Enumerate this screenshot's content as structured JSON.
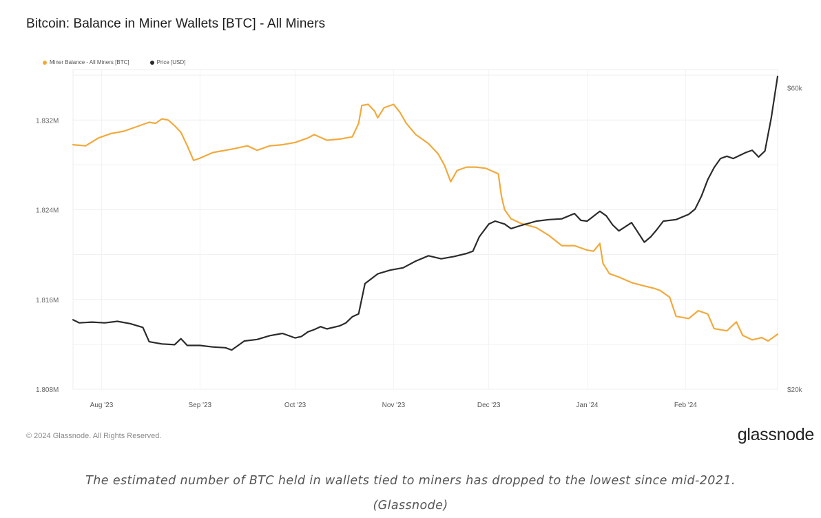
{
  "chart_data": {
    "type": "line",
    "title": "Bitcoin: Balance in Miner Wallets [BTC] - All Miners",
    "legend_position": "top-left",
    "x_tick_labels": [
      "Aug '23",
      "Sep '23",
      "Oct '23",
      "Nov '23",
      "Dec '23",
      "Jan '24",
      "Feb '24"
    ],
    "x_range_days": [
      0,
      222
    ],
    "x_tick_days": [
      9,
      40,
      70,
      101,
      131,
      162,
      193
    ],
    "left_axis": {
      "ylim": [
        1.808,
        1.8365
      ],
      "tick_values": [
        1.808,
        1.816,
        1.824,
        1.832
      ],
      "tick_labels": [
        "1.808M",
        "1.816M",
        "1.824M",
        "1.832M"
      ]
    },
    "right_axis": {
      "ylim": [
        20000,
        62400
      ],
      "tick_values": [
        20000,
        60000
      ],
      "tick_labels": [
        "$20k",
        "$60k"
      ]
    },
    "grid": true,
    "series": [
      {
        "name": "Miner Balance - All Miners [BTC]",
        "axis": "left",
        "color": "#f2a93b",
        "points": [
          [
            0,
            1.8298
          ],
          [
            4,
            1.8297
          ],
          [
            8,
            1.8304
          ],
          [
            12,
            1.8308
          ],
          [
            16,
            1.831
          ],
          [
            20,
            1.8314
          ],
          [
            24,
            1.8318
          ],
          [
            26,
            1.8317
          ],
          [
            28,
            1.8321
          ],
          [
            30,
            1.832
          ],
          [
            32,
            1.8315
          ],
          [
            34,
            1.8309
          ],
          [
            36,
            1.8297
          ],
          [
            38,
            1.8284
          ],
          [
            40,
            1.8286
          ],
          [
            44,
            1.8291
          ],
          [
            50,
            1.8294
          ],
          [
            55,
            1.8297
          ],
          [
            58,
            1.8293
          ],
          [
            62,
            1.8297
          ],
          [
            66,
            1.8298
          ],
          [
            70,
            1.83
          ],
          [
            74,
            1.8304
          ],
          [
            76,
            1.8307
          ],
          [
            80,
            1.8302
          ],
          [
            84,
            1.8303
          ],
          [
            88,
            1.8305
          ],
          [
            90,
            1.8317
          ],
          [
            91,
            1.8333
          ],
          [
            93,
            1.8334
          ],
          [
            95,
            1.8328
          ],
          [
            96,
            1.8322
          ],
          [
            98,
            1.8331
          ],
          [
            101,
            1.8334
          ],
          [
            103,
            1.8327
          ],
          [
            105,
            1.8317
          ],
          [
            108,
            1.8307
          ],
          [
            112,
            1.8299
          ],
          [
            115,
            1.829
          ],
          [
            117,
            1.828
          ],
          [
            119,
            1.8265
          ],
          [
            121,
            1.8275
          ],
          [
            124,
            1.8278
          ],
          [
            127,
            1.8278
          ],
          [
            130,
            1.8277
          ],
          [
            134,
            1.8272
          ],
          [
            135,
            1.8252
          ],
          [
            136,
            1.824
          ],
          [
            138,
            1.8232
          ],
          [
            141,
            1.8228
          ],
          [
            146,
            1.8224
          ],
          [
            150,
            1.8217
          ],
          [
            154,
            1.8208
          ],
          [
            158,
            1.8208
          ],
          [
            162,
            1.8204
          ],
          [
            164,
            1.8203
          ],
          [
            166,
            1.821
          ],
          [
            167,
            1.8192
          ],
          [
            169,
            1.8183
          ],
          [
            172,
            1.818
          ],
          [
            176,
            1.8175
          ],
          [
            180,
            1.8172
          ],
          [
            183,
            1.817
          ],
          [
            185,
            1.8168
          ],
          [
            188,
            1.8162
          ],
          [
            190,
            1.8145
          ],
          [
            194,
            1.8143
          ],
          [
            197,
            1.815
          ],
          [
            200,
            1.8147
          ],
          [
            202,
            1.8134
          ],
          [
            206,
            1.8132
          ],
          [
            209,
            1.814
          ],
          [
            211,
            1.8128
          ],
          [
            214,
            1.8124
          ],
          [
            217,
            1.8126
          ],
          [
            219,
            1.8123
          ],
          [
            222,
            1.8129
          ]
        ]
      },
      {
        "name": "Price [USD]",
        "axis": "right",
        "color": "#2b2b2b",
        "points": [
          [
            0,
            29200
          ],
          [
            2,
            28800
          ],
          [
            6,
            28900
          ],
          [
            10,
            28800
          ],
          [
            14,
            29000
          ],
          [
            18,
            28700
          ],
          [
            22,
            28200
          ],
          [
            24,
            26300
          ],
          [
            28,
            26000
          ],
          [
            32,
            25900
          ],
          [
            34,
            26700
          ],
          [
            36,
            25800
          ],
          [
            40,
            25800
          ],
          [
            44,
            25600
          ],
          [
            48,
            25500
          ],
          [
            50,
            25200
          ],
          [
            54,
            26400
          ],
          [
            58,
            26600
          ],
          [
            62,
            27100
          ],
          [
            66,
            27400
          ],
          [
            70,
            26800
          ],
          [
            72,
            27000
          ],
          [
            74,
            27600
          ],
          [
            76,
            27900
          ],
          [
            78,
            28300
          ],
          [
            80,
            28000
          ],
          [
            84,
            28400
          ],
          [
            86,
            28800
          ],
          [
            88,
            29600
          ],
          [
            90,
            30000
          ],
          [
            92,
            34000
          ],
          [
            96,
            35300
          ],
          [
            100,
            35800
          ],
          [
            104,
            36100
          ],
          [
            108,
            37000
          ],
          [
            112,
            37700
          ],
          [
            116,
            37300
          ],
          [
            120,
            37600
          ],
          [
            124,
            38000
          ],
          [
            126,
            38300
          ],
          [
            128,
            40200
          ],
          [
            131,
            41900
          ],
          [
            133,
            42300
          ],
          [
            136,
            41900
          ],
          [
            138,
            41300
          ],
          [
            141,
            41700
          ],
          [
            146,
            42300
          ],
          [
            150,
            42500
          ],
          [
            154,
            42600
          ],
          [
            158,
            43300
          ],
          [
            160,
            42400
          ],
          [
            162,
            42300
          ],
          [
            166,
            43600
          ],
          [
            168,
            43000
          ],
          [
            170,
            41800
          ],
          [
            172,
            41000
          ],
          [
            176,
            42100
          ],
          [
            180,
            39500
          ],
          [
            182,
            40200
          ],
          [
            184,
            41200
          ],
          [
            186,
            42300
          ],
          [
            190,
            42500
          ],
          [
            194,
            43200
          ],
          [
            196,
            43900
          ],
          [
            198,
            45600
          ],
          [
            200,
            47800
          ],
          [
            202,
            49400
          ],
          [
            204,
            50600
          ],
          [
            206,
            50900
          ],
          [
            208,
            50600
          ],
          [
            210,
            51000
          ],
          [
            212,
            51400
          ],
          [
            214,
            51700
          ],
          [
            216,
            50800
          ],
          [
            218,
            51600
          ],
          [
            220,
            56000
          ],
          [
            222,
            61500
          ]
        ]
      }
    ]
  },
  "legend": {
    "miner_label": "Miner Balance - All Miners [BTC]",
    "price_label": "Price [USD]"
  },
  "footer": {
    "copyright": "© 2024 Glassnode. All Rights Reserved.",
    "logo": "glassnode"
  },
  "caption": {
    "line1": "The estimated number of BTC held in wallets tied to miners has dropped to the lowest since mid-2021.",
    "line2": "(Glassnode)"
  }
}
